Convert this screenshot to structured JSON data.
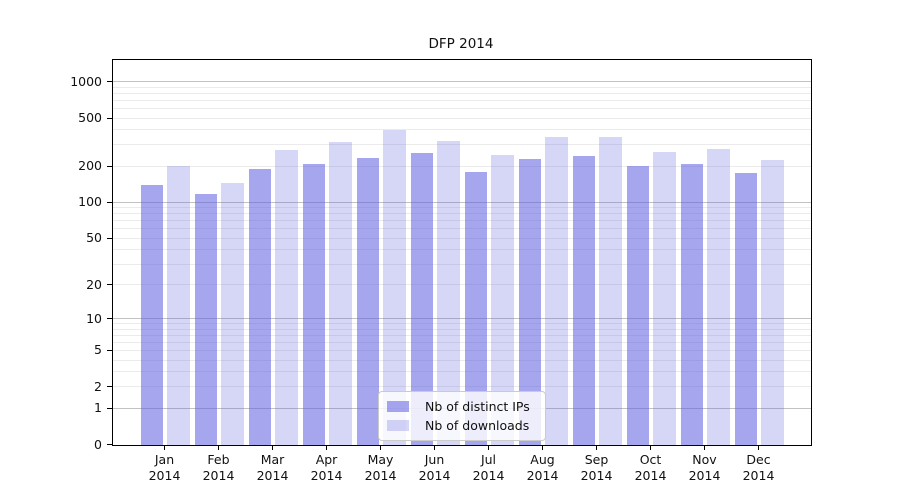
{
  "chart_data": {
    "type": "bar",
    "title": "DFP 2014",
    "categories": [
      "Jan",
      "Feb",
      "Mar",
      "Apr",
      "May",
      "Jun",
      "Jul",
      "Aug",
      "Sep",
      "Oct",
      "Nov",
      "Dec"
    ],
    "category_year": "2014",
    "series": [
      {
        "name": "Nb of distinct IPs",
        "color": "#6060e08f",
        "values": [
          138,
          115,
          186,
          208,
          232,
          255,
          176,
          225,
          240,
          198,
          207,
          174
        ]
      },
      {
        "name": "Nb of downloads",
        "color": "#6060e042",
        "values": [
          197,
          144,
          272,
          313,
          392,
          323,
          243,
          344,
          344,
          260,
          276,
          222
        ]
      }
    ],
    "yscale": "log1p",
    "yticks": [
      0,
      1,
      2,
      5,
      10,
      20,
      50,
      100,
      200,
      500,
      1000
    ],
    "ylim": [
      0,
      1520
    ],
    "grid": true,
    "legend_position": "lower center",
    "xlabel": "",
    "ylabel": ""
  },
  "colors": {
    "minor_grid": "#ebebeb",
    "major_grid": "#c2c2c2",
    "spine": "#000000",
    "text": "#111111",
    "legend_border": "#cbcbcb"
  }
}
